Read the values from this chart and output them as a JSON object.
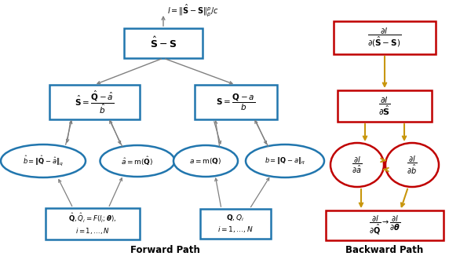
{
  "fig_width": 5.86,
  "fig_height": 3.26,
  "dpi": 100,
  "blue": "#2176AE",
  "red": "#C00000",
  "gray": "#808080",
  "gold": "#C8960C",
  "fw_label": "Forward Path",
  "bw_label": "Backward Path"
}
